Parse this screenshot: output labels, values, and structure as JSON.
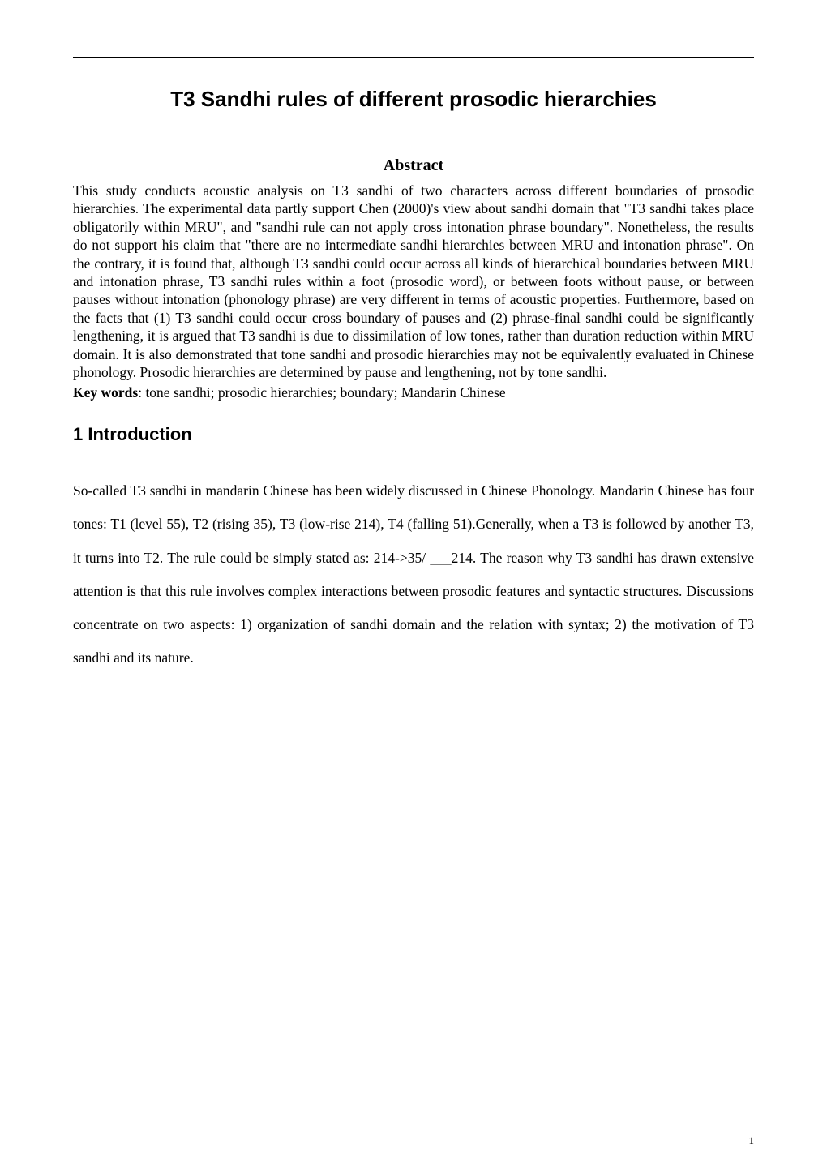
{
  "colors": {
    "background": "#ffffff",
    "text": "#000000",
    "rule": "#000000"
  },
  "typography": {
    "title_fontsize": 26,
    "title_family": "Arial",
    "title_weight": "bold",
    "abstract_heading_fontsize": 20,
    "abstract_heading_family": "Times New Roman",
    "abstract_heading_weight": "bold",
    "abstract_body_fontsize": 17.5,
    "section_heading_fontsize": 22,
    "section_heading_family": "Arial",
    "section_heading_weight": "bold",
    "body_fontsize": 17.5,
    "body_line_height": 2.35,
    "page_number_fontsize": 13
  },
  "title": "T3 Sandhi rules of different prosodic hierarchies",
  "abstract": {
    "heading": "Abstract",
    "body": "This study conducts acoustic analysis on T3 sandhi of two characters across different boundaries of prosodic hierarchies. The experimental data partly support Chen (2000)'s view about sandhi domain that \"T3 sandhi takes place obligatorily within MRU\", and \"sandhi rule can not apply cross intonation phrase boundary\". Nonetheless, the results do not support his claim that \"there are no intermediate sandhi hierarchies between MRU and intonation phrase\". On the contrary, it is found that, although T3 sandhi could occur across all kinds of hierarchical boundaries between MRU and intonation phrase, T3 sandhi rules within a foot (prosodic word), or between foots without pause, or between pauses without intonation (phonology phrase) are very different in terms of acoustic properties. Furthermore, based on the facts that (1) T3 sandhi could occur cross boundary of pauses and (2) phrase-final sandhi could be significantly lengthening, it is argued that T3 sandhi is due to dissimilation of low tones, rather than duration reduction within MRU domain. It is also demonstrated that tone sandhi and prosodic hierarchies may not be equivalently evaluated in Chinese phonology. Prosodic hierarchies are determined by pause and lengthening, not by tone sandhi."
  },
  "keywords": {
    "label": "Key words",
    "text": ": tone sandhi; prosodic hierarchies; boundary; Mandarin Chinese"
  },
  "section": {
    "heading": "1 Introduction",
    "body": "So-called T3 sandhi in mandarin Chinese has been widely discussed in Chinese Phonology. Mandarin Chinese has four tones: T1 (level 55), T2 (rising 35), T3 (low-rise 214), T4 (falling 51).Generally, when a T3 is followed by another T3, it turns into T2. The rule could be simply stated as: 214->35/ ___214. The reason why T3 sandhi has drawn extensive attention is that this rule involves complex interactions between prosodic features and syntactic structures. Discussions concentrate on two aspects: 1) organization of sandhi domain and the relation with syntax; 2) the motivation of T3 sandhi and its nature."
  },
  "page_number": "1"
}
